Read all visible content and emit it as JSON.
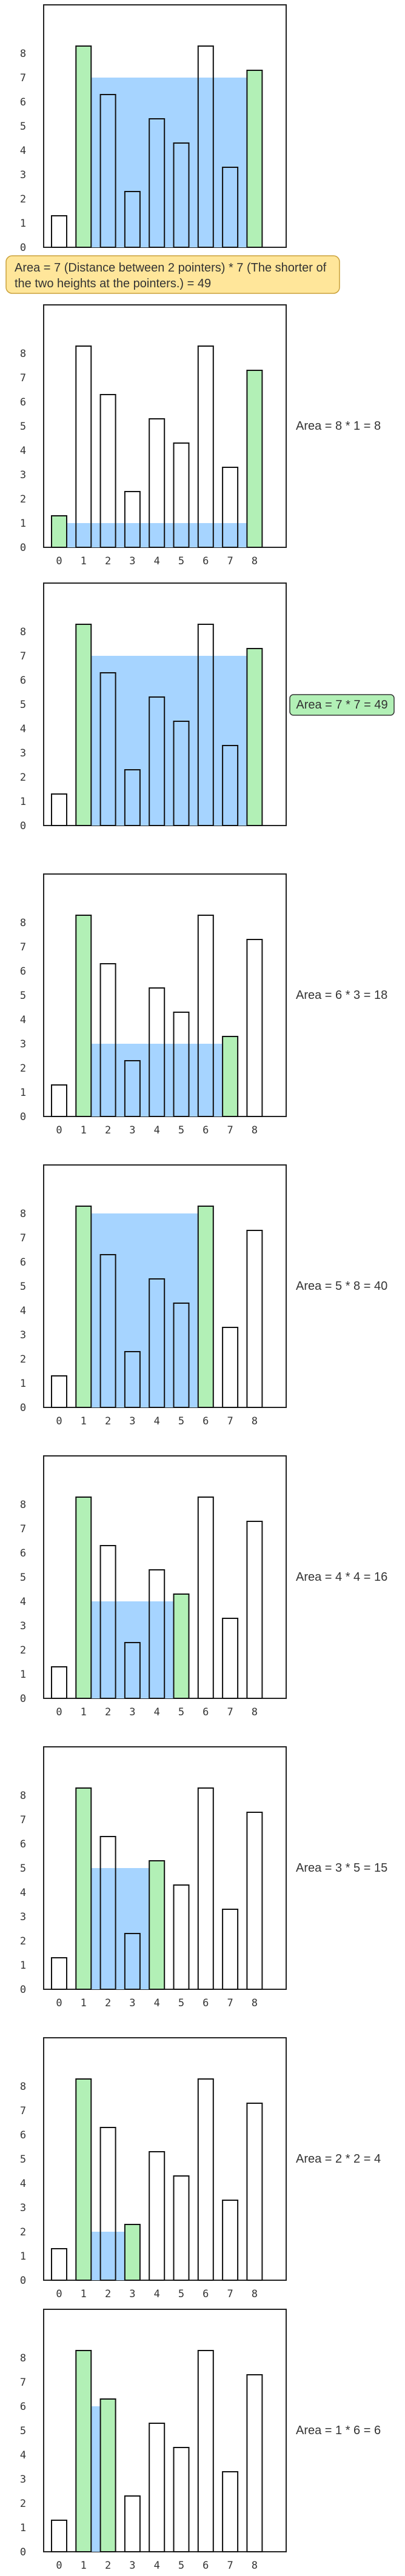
{
  "chart_data": {
    "type": "bar",
    "heights": [
      1,
      8,
      6,
      2,
      5,
      4,
      8,
      3,
      7
    ],
    "x_ticks": [
      "0",
      "1",
      "2",
      "3",
      "4",
      "5",
      "6",
      "7",
      "8"
    ],
    "y_ticks": [
      "0",
      "1",
      "2",
      "3",
      "4",
      "5",
      "6",
      "7",
      "8"
    ],
    "colors": {
      "bar": "#ffffff",
      "pointer": "#b2f0b6",
      "water": "#a6d4ff",
      "best": "#b2f0b6",
      "note": "#ffe69a"
    }
  },
  "steps": [
    {
      "left": 1,
      "right": 8,
      "level": 7,
      "label": "",
      "best": false,
      "show_x": false
    },
    {
      "left": 0,
      "right": 8,
      "level": 1,
      "label": "Area = 8 * 1 = 8",
      "best": false,
      "show_x": true
    },
    {
      "left": 1,
      "right": 8,
      "level": 7,
      "label": "Area = 7 * 7 = 49",
      "best": true,
      "show_x": false
    },
    {
      "left": 1,
      "right": 7,
      "level": 3,
      "label": "Area = 6 * 3 = 18",
      "best": false,
      "show_x": true
    },
    {
      "left": 1,
      "right": 6,
      "level": 8,
      "label": "Area = 5 * 8 = 40",
      "best": false,
      "show_x": true
    },
    {
      "left": 1,
      "right": 5,
      "level": 4,
      "label": "Area = 4 * 4 = 16",
      "best": false,
      "show_x": true
    },
    {
      "left": 1,
      "right": 4,
      "level": 5,
      "label": "Area = 3 * 5 = 15",
      "best": false,
      "show_x": true
    },
    {
      "left": 1,
      "right": 3,
      "level": 2,
      "label": "Area = 2 * 2 = 4",
      "best": false,
      "show_x": true
    },
    {
      "left": 1,
      "right": 2,
      "level": 6,
      "label": "Area = 1 * 6 = 6",
      "best": false,
      "show_x": true
    }
  ],
  "note": {
    "line1": "Area = 7 (Distance between 2 pointers) * 7 (The shorter of",
    "line2": "the two heights at the pointers.) = 49"
  }
}
